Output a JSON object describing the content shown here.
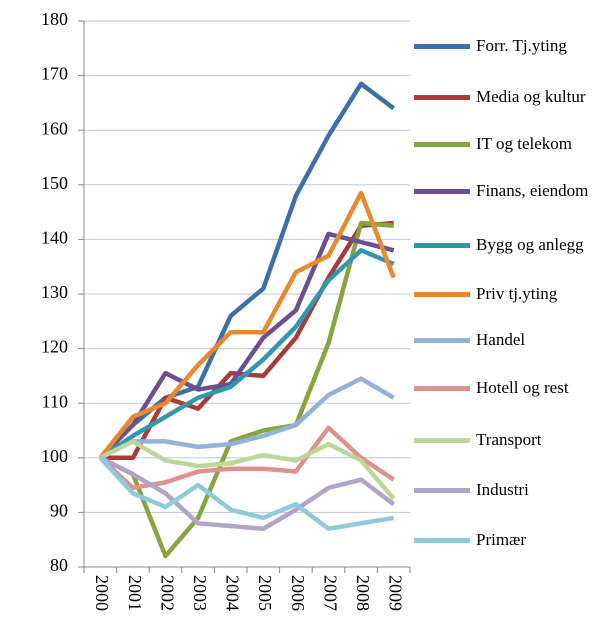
{
  "chart_data": {
    "type": "line",
    "categories": [
      "2000",
      "2001",
      "2002",
      "2003",
      "2004",
      "2005",
      "2006",
      "2007",
      "2008",
      "2009"
    ],
    "series": [
      {
        "name": "Forr. Tj.yting",
        "color": "#3e6fa8",
        "values": [
          100,
          106,
          111,
          113,
          126,
          131,
          148,
          159,
          168.5,
          164
        ]
      },
      {
        "name": "Media og kultur",
        "color": "#a83b38",
        "values": [
          100,
          100,
          111,
          109,
          115.5,
          115,
          122,
          133,
          142.5,
          143
        ]
      },
      {
        "name": "IT og telekom",
        "color": "#86a43f",
        "values": [
          100,
          97,
          82,
          89,
          103,
          105,
          106,
          121,
          143,
          142.5
        ]
      },
      {
        "name": "Finans, eiendom",
        "color": "#6b4f8f",
        "values": [
          100,
          106,
          115.5,
          112.5,
          113.5,
          122,
          127,
          141,
          139.5,
          138
        ]
      },
      {
        "name": "Bygg og anlegg",
        "color": "#2f98ae",
        "values": [
          100,
          104,
          107.5,
          111,
          113,
          118,
          124,
          132.5,
          138,
          135.5
        ]
      },
      {
        "name": "Priv tj.yting",
        "color": "#e8892f",
        "values": [
          100,
          107.5,
          110,
          117,
          123,
          123,
          134,
          137,
          148.5,
          133
        ]
      },
      {
        "name": "Handel",
        "color": "#93b2da",
        "values": [
          100,
          103,
          103,
          102,
          102.5,
          104,
          106,
          111.5,
          114.5,
          111
        ]
      },
      {
        "name": "Hotell og rest",
        "color": "#de918d",
        "values": [
          100,
          94.5,
          95.5,
          97.5,
          98,
          98,
          97.5,
          105.5,
          100,
          96
        ]
      },
      {
        "name": "Transport",
        "color": "#bfd69a",
        "values": [
          100,
          103,
          99.5,
          98.5,
          99,
          100.5,
          99.5,
          102.5,
          99.5,
          92.5
        ]
      },
      {
        "name": "Industri",
        "color": "#b2a3c8",
        "values": [
          100,
          97,
          93.5,
          88,
          87.5,
          87,
          90.5,
          94.5,
          96,
          91.5
        ]
      },
      {
        "name": "Primær",
        "color": "#8ecadb",
        "values": [
          100,
          93.5,
          91,
          95,
          90.5,
          89,
          91.5,
          87,
          88,
          89
        ]
      }
    ],
    "ylim": [
      80,
      180
    ],
    "yticks": [
      80,
      90,
      100,
      110,
      120,
      130,
      140,
      150,
      160,
      170,
      180
    ],
    "grid": true,
    "legend": "right"
  }
}
